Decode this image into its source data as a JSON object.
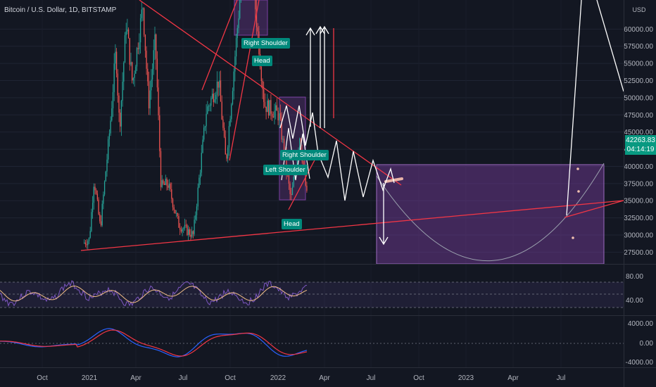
{
  "header": {
    "symbol": "Bitcoin / U.S. Dollar, 1D, BITSTAMP"
  },
  "price_box": {
    "price": "42263.83",
    "countdown": "04:14:19"
  },
  "currency": "USD",
  "colors": {
    "background": "#131722",
    "up": "#26a69a",
    "down": "#ef5350",
    "trendline": "#f23645",
    "drawing": "#ffffff",
    "zone": "#7b3fa0",
    "rsi": "#7e57c2",
    "rsi_ma": "#f5c08a",
    "macd_blue": "#2962ff",
    "macd_red": "#f23645",
    "tag": "#00897b",
    "axis_text": "#b2b5be",
    "price_box": "#089981"
  },
  "labels": [
    {
      "id": "right-shoulder-top",
      "text": "Right Shoulder"
    },
    {
      "id": "head-top",
      "text": "Head"
    },
    {
      "id": "right-shoulder-bottom",
      "text": "Right Shoulder"
    },
    {
      "id": "left-shoulder-bottom",
      "text": "Left Shoulder"
    },
    {
      "id": "head-bottom",
      "text": "Head"
    }
  ],
  "chart_data": {
    "type": "candlestick",
    "title": "Bitcoin / U.S. Dollar, 1D, BITSTAMP",
    "price_axis": {
      "unit": "USD",
      "ticks": [
        "60000.00",
        "57500.00",
        "55000.00",
        "52500.00",
        "50000.00",
        "47500.00",
        "45000.00",
        "42500.00",
        "40000.00",
        "37500.00",
        "35000.00",
        "32500.00",
        "30000.00",
        "27500.00"
      ],
      "last_price": 42263.83
    },
    "time_axis": {
      "ticks": [
        "Oct",
        "2021",
        "Apr",
        "Jul",
        "Oct",
        "2022",
        "Apr",
        "Jul",
        "Oct",
        "2023",
        "Apr",
        "Jul"
      ]
    },
    "price_path": [
      {
        "t": "2021-01-01",
        "close": 29400
      },
      {
        "t": "2021-01-10",
        "close": 38200
      },
      {
        "t": "2021-01-22",
        "close": 31000
      },
      {
        "t": "2021-02-10",
        "close": 46000
      },
      {
        "t": "2021-02-21",
        "close": 57000
      },
      {
        "t": "2021-02-28",
        "close": 45500
      },
      {
        "t": "2021-03-13",
        "close": 61000
      },
      {
        "t": "2021-03-25",
        "close": 52000
      },
      {
        "t": "2021-04-14",
        "close": 63500
      },
      {
        "t": "2021-04-25",
        "close": 49000
      },
      {
        "t": "2021-05-08",
        "close": 58500
      },
      {
        "t": "2021-05-19",
        "close": 37000
      },
      {
        "t": "2021-06-01",
        "close": 37500
      },
      {
        "t": "2021-06-22",
        "close": 31500
      },
      {
        "t": "2021-07-20",
        "close": 30000
      },
      {
        "t": "2021-08-14",
        "close": 48000
      },
      {
        "t": "2021-09-07",
        "close": 52500
      },
      {
        "t": "2021-09-21",
        "close": 40500
      },
      {
        "t": "2021-10-20",
        "close": 66500
      },
      {
        "t": "2021-11-10",
        "close": 68500
      },
      {
        "t": "2021-12-04",
        "close": 49000
      },
      {
        "t": "2022-01-01",
        "close": 47500
      },
      {
        "t": "2022-01-24",
        "close": 35000
      },
      {
        "t": "2022-02-10",
        "close": 44500
      },
      {
        "t": "2022-02-24",
        "close": 35500
      },
      {
        "t": "2022-03-10",
        "close": 42263.83
      }
    ],
    "rsi": {
      "ticks": [
        "80.00",
        "40.00"
      ],
      "levels": [
        70,
        50,
        30
      ]
    },
    "macd": {
      "ticks": [
        "4000.00",
        "0.00",
        "-4000.00"
      ]
    }
  }
}
